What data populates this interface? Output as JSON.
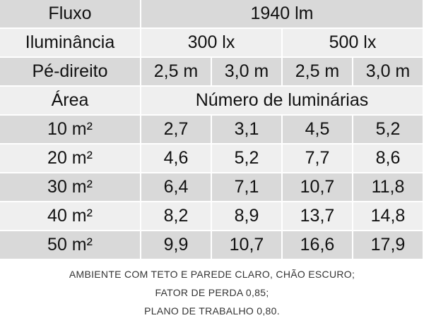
{
  "table": {
    "header": [
      [
        "Fluxo",
        "1940 lm"
      ],
      [
        "Iluminância",
        "300 lx",
        "500 lx"
      ],
      [
        "Pé-direito",
        "2,5 m",
        "3,0 m",
        "2,5 m",
        "3,0 m"
      ],
      [
        "Área",
        "Número de luminárias"
      ]
    ],
    "rows": [
      [
        "10 m²",
        "2,7",
        "3,1",
        "4,5",
        "5,2"
      ],
      [
        "20 m²",
        "4,6",
        "5,2",
        "7,7",
        "8,6"
      ],
      [
        "30 m²",
        "6,4",
        "7,1",
        "10,7",
        "11,8"
      ],
      [
        "40 m²",
        "8,2",
        "8,9",
        "13,7",
        "14,8"
      ],
      [
        "50 m²",
        "9,9",
        "10,7",
        "16,6",
        "17,9"
      ]
    ]
  },
  "notes": [
    "AMBIENTE COM TETO E PAREDE CLARO, CHÃO ESCURO;",
    "FATOR DE PERDA 0,85;",
    "PLANO DE TRABALHO 0,80."
  ]
}
